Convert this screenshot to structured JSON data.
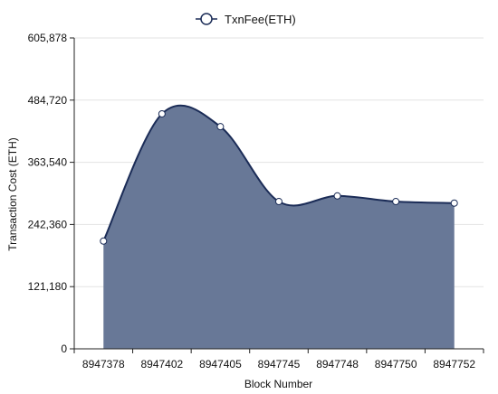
{
  "chart_data": {
    "type": "area",
    "x": [
      "8947378",
      "8947402",
      "8947405",
      "8947745",
      "8947748",
      "8947750",
      "8947752"
    ],
    "series": [
      {
        "name": "TxnFee(ETH)",
        "values": [
          210000,
          458000,
          433000,
          287000,
          298000,
          287000,
          284000
        ]
      }
    ],
    "xlabel": "Block Number",
    "ylabel": "Transaction Cost (ETH)",
    "ylim": [
      0,
      605878
    ],
    "yticks": [
      0,
      121180,
      242360,
      363540,
      484720,
      605878
    ],
    "ytick_labels": [
      "0",
      "121,180",
      "242,360",
      "363,540",
      "484,720",
      "605,878"
    ],
    "legend": "top-center",
    "grid": true,
    "colors": {
      "fill": "#687897",
      "line": "#1b2c57",
      "grid": "#e3e3e3",
      "axis": "#222222"
    }
  }
}
